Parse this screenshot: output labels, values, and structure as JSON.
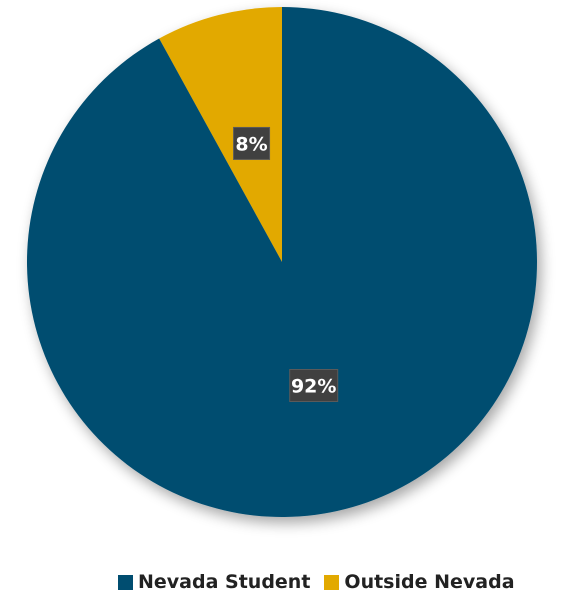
{
  "chart_data": {
    "type": "pie",
    "categories": [
      "Nevada Student",
      "Outside Nevada"
    ],
    "values": [
      92,
      8
    ],
    "data_labels": [
      "92%",
      "8%"
    ],
    "colors": [
      "#004d70",
      "#e2a900"
    ],
    "start_slice": "Outside Nevada",
    "direction": "clockwise-from-top",
    "legend_position": "bottom"
  }
}
